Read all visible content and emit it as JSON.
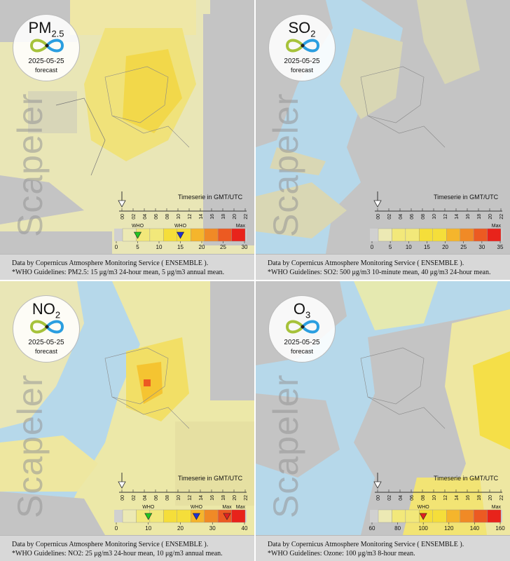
{
  "panels": [
    {
      "pollutant_main": "PM",
      "pollutant_sub": "2.5",
      "date": "2025-05-25",
      "forecast": "forecast",
      "brand": "Scapeler",
      "timeserie_label": "Timeserie in GMT/UTC",
      "hours": [
        "00",
        "02",
        "04",
        "06",
        "08",
        "10",
        "12",
        "14",
        "16",
        "18",
        "20",
        "22"
      ],
      "scale_ticks": [
        "0",
        "5",
        "10",
        "15",
        "20",
        "25",
        "30"
      ],
      "scale_max": "Max",
      "who_markers": [
        {
          "label": "WHO",
          "value": "5",
          "color": "#22c422"
        },
        {
          "label": "WHO",
          "value": "15",
          "color": "#2030d0"
        }
      ],
      "caption_line1": "Data by Copernicus Atmosphere Monitoring Service ( ENSEMBLE ).",
      "caption_line2": "*WHO Guidelines: PM2.5: 15 μg/m3 24-hour mean, 5 μg/m3 annual mean."
    },
    {
      "pollutant_main": "SO",
      "pollutant_sub": "2",
      "date": "2025-05-25",
      "forecast": "forecast",
      "brand": "Scapeler",
      "timeserie_label": "Timeserie in GMT/UTC",
      "hours": [
        "00",
        "02",
        "04",
        "06",
        "08",
        "10",
        "12",
        "14",
        "16",
        "18",
        "20",
        "22"
      ],
      "scale_ticks": [
        "0",
        "5",
        "10",
        "15",
        "20",
        "25",
        "30",
        "35"
      ],
      "scale_max": "Max",
      "who_markers": [],
      "caption_line1": "Data by Copernicus Atmosphere Monitoring Service ( ENSEMBLE ).",
      "caption_line2": "*WHO Guidelines: SO2: 500 μg/m3 10-minute mean, 40 μg/m3 24-hour mean."
    },
    {
      "pollutant_main": "NO",
      "pollutant_sub": "2",
      "date": "2025-05-25",
      "forecast": "forecast",
      "brand": "Scapeler",
      "timeserie_label": "Timeserie in GMT/UTC",
      "hours": [
        "00",
        "02",
        "04",
        "06",
        "08",
        "10",
        "12",
        "14",
        "16",
        "18",
        "20",
        "22"
      ],
      "scale_ticks": [
        "0",
        "10",
        "20",
        "30",
        "40"
      ],
      "scale_max": "Max",
      "who_markers": [
        {
          "label": "WHO",
          "value": "10",
          "color": "#22c422"
        },
        {
          "label": "WHO",
          "value": "25",
          "color": "#2030d0"
        },
        {
          "label": "Max",
          "value": "",
          "color": "#e02020"
        }
      ],
      "caption_line1": "Data by Copernicus Atmosphere Monitoring Service ( ENSEMBLE ).",
      "caption_line2": "*WHO Guidelines: NO2: 25 μg/m3 24-hour mean, 10 μg/m3 annual mean."
    },
    {
      "pollutant_main": "O",
      "pollutant_sub": "3",
      "date": "2025-05-25",
      "forecast": "forecast",
      "brand": "Scapeler",
      "timeserie_label": "Timeserie in GMT/UTC",
      "hours": [
        "00",
        "02",
        "04",
        "06",
        "08",
        "10",
        "12",
        "14",
        "16",
        "18",
        "20",
        "22"
      ],
      "scale_ticks": [
        "60",
        "80",
        "100",
        "120",
        "140",
        "160"
      ],
      "scale_max": "Max",
      "who_markers": [
        {
          "label": "WHO",
          "value": "100",
          "color": "#e02020"
        }
      ],
      "caption_line1": "Data by Copernicus Atmosphere Monitoring Service ( ENSEMBLE ).",
      "caption_line2": "*WHO Guidelines: Ozone: 100 μg/m3 8-hour mean."
    }
  ],
  "colors": {
    "sea": "#b6d8ea",
    "land_grey": "#c4c4c4",
    "level1": "#ece9b4",
    "level2": "#f2e87a",
    "level3": "#f5de3a",
    "level4": "#f5b52c",
    "level5": "#f08a26",
    "level6": "#ec5a22",
    "level7": "#e8231b"
  }
}
